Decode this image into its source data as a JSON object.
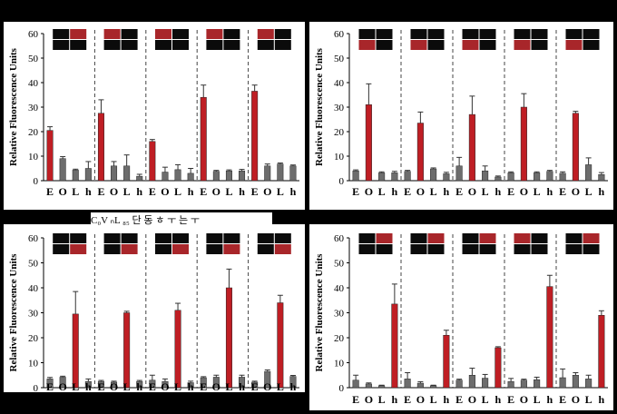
{
  "page": {
    "overlay_text": "C₀V ₙL ₈₅ 단 동 ㅎ ㅜ 는 ㅜ"
  },
  "colors": {
    "marker": "#bf1e24",
    "control": "#6d6d6d",
    "background": "#000000",
    "thumb_dark": "#0b0b0b",
    "thumb_red": "#a8262a"
  },
  "chart_data": [
    {
      "type": "bar",
      "ylabel": "Relative Fluorescence Units",
      "ylim": [
        0,
        60
      ],
      "yticks": [
        0,
        10,
        20,
        30,
        40,
        50,
        60
      ],
      "categories": [
        "E",
        "O",
        "L",
        "h"
      ],
      "groups": 5,
      "marker_index": [
        0,
        0,
        0,
        0,
        0
      ],
      "values": [
        [
          20.5,
          9.0,
          4.3,
          5.0
        ],
        [
          27.5,
          6.0,
          6.0,
          1.8
        ],
        [
          16.0,
          3.5,
          4.5,
          3.0
        ],
        [
          34.0,
          3.8,
          4.0,
          4.0
        ],
        [
          36.5,
          6.0,
          6.8,
          6.0
        ]
      ],
      "errors": [
        [
          1.5,
          0.8,
          0.4,
          2.8
        ],
        [
          5.5,
          1.8,
          4.5,
          0.8
        ],
        [
          0.8,
          2.0,
          2.0,
          2.0
        ],
        [
          5.0,
          0.4,
          0.4,
          0.6
        ],
        [
          2.5,
          0.8,
          0.4,
          0.4
        ]
      ],
      "thumb_red": [
        1,
        0,
        0,
        0,
        0
      ]
    },
    {
      "type": "bar",
      "ylabel": "Relative Fluorescence Units",
      "ylim": [
        0,
        60
      ],
      "yticks": [
        0,
        10,
        20,
        30,
        40,
        50,
        60
      ],
      "categories": [
        "E",
        "O",
        "L",
        "h"
      ],
      "groups": 5,
      "marker_index": [
        1,
        1,
        1,
        1,
        1
      ],
      "values": [
        [
          4.0,
          31.0,
          3.2,
          3.2
        ],
        [
          3.8,
          23.5,
          4.8,
          2.8
        ],
        [
          6.0,
          27.0,
          4.0,
          1.5
        ],
        [
          3.2,
          30.0,
          3.2,
          3.8
        ],
        [
          3.0,
          27.5,
          6.5,
          2.5
        ]
      ],
      "errors": [
        [
          0.4,
          8.5,
          0.4,
          0.6
        ],
        [
          0.4,
          4.5,
          0.4,
          0.6
        ],
        [
          3.5,
          7.5,
          2.0,
          0.4
        ],
        [
          0.4,
          5.5,
          0.4,
          0.4
        ],
        [
          0.6,
          0.8,
          2.8,
          0.8
        ]
      ],
      "thumb_red": [
        2,
        2,
        2,
        2,
        2
      ]
    },
    {
      "type": "bar",
      "ylabel": "Relative Fluorescence Units",
      "ylim": [
        0,
        60
      ],
      "yticks": [
        0,
        10,
        20,
        30,
        40,
        50,
        60
      ],
      "categories": [
        "E",
        "O",
        "L",
        "h"
      ],
      "groups": 5,
      "marker_index": [
        2,
        2,
        2,
        2,
        2
      ],
      "values": [
        [
          3.5,
          4.2,
          29.5,
          2.5
        ],
        [
          2.5,
          2.2,
          30.0,
          2.5
        ],
        [
          3.0,
          2.5,
          31.0,
          2.0
        ],
        [
          4.0,
          4.2,
          40.0,
          4.2
        ],
        [
          2.2,
          6.5,
          34.0,
          4.5
        ]
      ],
      "errors": [
        [
          0.6,
          0.4,
          9.0,
          1.0
        ],
        [
          0.4,
          0.4,
          0.6,
          0.4
        ],
        [
          2.0,
          1.0,
          2.8,
          0.6
        ],
        [
          0.4,
          0.8,
          7.5,
          0.8
        ],
        [
          0.4,
          0.6,
          3.0,
          0.4
        ]
      ],
      "thumb_red": [
        3,
        3,
        3,
        3,
        3
      ]
    },
    {
      "type": "bar",
      "ylabel": "Relative Fluorescence Units",
      "ylim": [
        0,
        60
      ],
      "yticks": [
        0,
        10,
        20,
        30,
        40,
        50,
        60
      ],
      "categories": [
        "E",
        "O",
        "L",
        "h"
      ],
      "groups": 5,
      "marker_index": [
        3,
        3,
        3,
        3,
        3
      ],
      "values": [
        [
          3.0,
          1.5,
          0.8,
          33.5
        ],
        [
          3.5,
          1.8,
          0.8,
          21.0
        ],
        [
          3.0,
          5.0,
          3.8,
          16.0
        ],
        [
          2.5,
          3.0,
          3.2,
          40.5
        ],
        [
          4.0,
          5.0,
          3.5,
          29.0
        ]
      ],
      "errors": [
        [
          2.0,
          0.4,
          0.2,
          8.0
        ],
        [
          2.5,
          0.6,
          0.2,
          2.0
        ],
        [
          0.4,
          2.8,
          1.5,
          0.4
        ],
        [
          1.2,
          0.4,
          1.0,
          4.5
        ],
        [
          3.5,
          1.0,
          1.5,
          1.8
        ]
      ],
      "thumb_red": [
        1,
        1,
        1,
        0,
        1
      ]
    }
  ]
}
